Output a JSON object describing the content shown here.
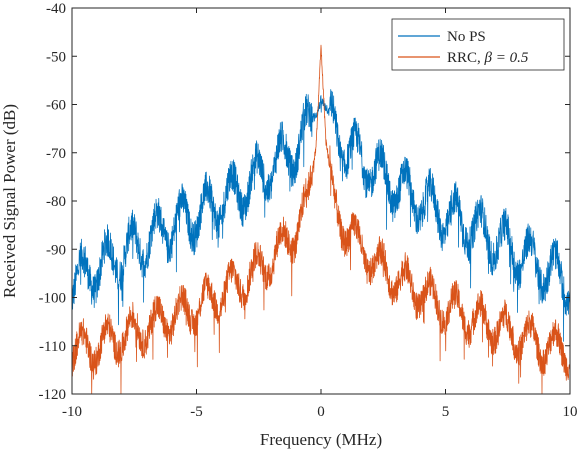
{
  "chart_data": {
    "type": "line",
    "xlabel": "Frequency (MHz)",
    "ylabel": "Received Signal Power (dB)",
    "xlim": [
      -10,
      10
    ],
    "ylim": [
      -120,
      -40
    ],
    "xticks": [
      -10,
      -5,
      0,
      5,
      10
    ],
    "xtick_labels": [
      "-10",
      "-5",
      "0",
      "5",
      "10"
    ],
    "yticks": [
      -120,
      -110,
      -100,
      -90,
      -80,
      -70,
      -60,
      -50,
      -40
    ],
    "ytick_labels": [
      "-120",
      "-110",
      "-100",
      "-90",
      "-80",
      "-70",
      "-60",
      "-50",
      "-40"
    ],
    "grid": false,
    "legend_position": "top-right",
    "series": [
      {
        "name": "No PS",
        "color": "#0072BD",
        "noise_db": 3.5,
        "x": [
          -10,
          -9,
          -8,
          -7,
          -6,
          -5,
          -4,
          -3,
          -2,
          -1.5,
          -1,
          -0.5,
          -0.2,
          0,
          0.2,
          0.5,
          1,
          1.5,
          2,
          3,
          4,
          5,
          6,
          7,
          8,
          9,
          10
        ],
        "y": [
          -97,
          -94,
          -91,
          -88,
          -85,
          -83,
          -80,
          -77,
          -73,
          -71,
          -69,
          -65,
          -61,
          -58,
          -61,
          -65,
          -69,
          -71,
          -73,
          -77,
          -80,
          -83,
          -85,
          -88,
          -91,
          -94,
          -97
        ]
      },
      {
        "name": "RRC, β = 0.5",
        "legend_label_text": "RRC, ",
        "legend_beta": "β = 0.5",
        "color": "#D95319",
        "noise_db": 3.0,
        "x": [
          -10,
          -9,
          -8,
          -7,
          -6,
          -5,
          -4,
          -3,
          -2,
          -1.5,
          -1,
          -0.5,
          -0.2,
          0,
          0.2,
          0.5,
          1,
          1.5,
          2,
          3,
          4,
          5,
          6,
          7,
          8,
          9,
          10
        ],
        "y": [
          -111,
          -110,
          -108,
          -106,
          -104,
          -102,
          -99,
          -96,
          -92,
          -89,
          -86,
          -80,
          -68,
          -47,
          -68,
          -80,
          -86,
          -89,
          -92,
          -96,
          -99,
          -102,
          -104,
          -106,
          -108,
          -110,
          -111
        ]
      }
    ]
  }
}
